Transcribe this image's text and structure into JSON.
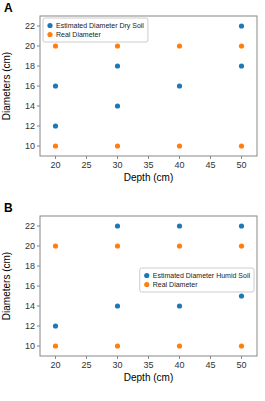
{
  "chart_data": [
    {
      "type": "scatter",
      "title": "A",
      "x_label": "Depth (cm)",
      "y_label": "Diameters (cm)",
      "series": [
        {
          "name": "Estimated Diameter Dry Soil",
          "color": "#1f77b4",
          "x": [
            20,
            20,
            30,
            30,
            40,
            50,
            50
          ],
          "values": [
            16,
            12,
            18,
            14,
            16,
            22,
            18
          ]
        },
        {
          "name": "Real Diameter",
          "color": "#ff7f0e",
          "x": [
            20,
            30,
            40,
            50,
            20,
            30,
            40,
            50
          ],
          "values": [
            20,
            20,
            20,
            20,
            10,
            10,
            10,
            10
          ]
        }
      ],
      "xlim": [
        17.5,
        52.5
      ],
      "ylim": [
        9.0,
        23.0
      ],
      "xticks": [
        20,
        25,
        30,
        35,
        40,
        45,
        50
      ],
      "yticks": [
        10,
        12,
        14,
        16,
        18,
        20,
        22
      ],
      "legend": "upper left",
      "grid": false
    },
    {
      "type": "scatter",
      "title": "B",
      "x_label": "Depth (cm)",
      "y_label": "Diameters (cm)",
      "series": [
        {
          "name": "Estimated Diameter Humid Soil",
          "color": "#1f77b4",
          "x": [
            20,
            30,
            30,
            40,
            40,
            50,
            50
          ],
          "values": [
            12,
            22,
            14,
            22,
            14,
            22,
            15
          ]
        },
        {
          "name": "Real Diameter",
          "color": "#ff7f0e",
          "x": [
            20,
            30,
            40,
            50,
            20,
            30,
            40,
            50
          ],
          "values": [
            20,
            20,
            20,
            20,
            10,
            10,
            10,
            10
          ]
        }
      ],
      "xlim": [
        17.5,
        52.5
      ],
      "ylim": [
        9.0,
        23.0
      ],
      "xticks": [
        20,
        25,
        30,
        35,
        40,
        45,
        50
      ],
      "yticks": [
        10,
        12,
        14,
        16,
        18,
        20,
        22
      ],
      "legend": "center right",
      "grid": false
    }
  ]
}
